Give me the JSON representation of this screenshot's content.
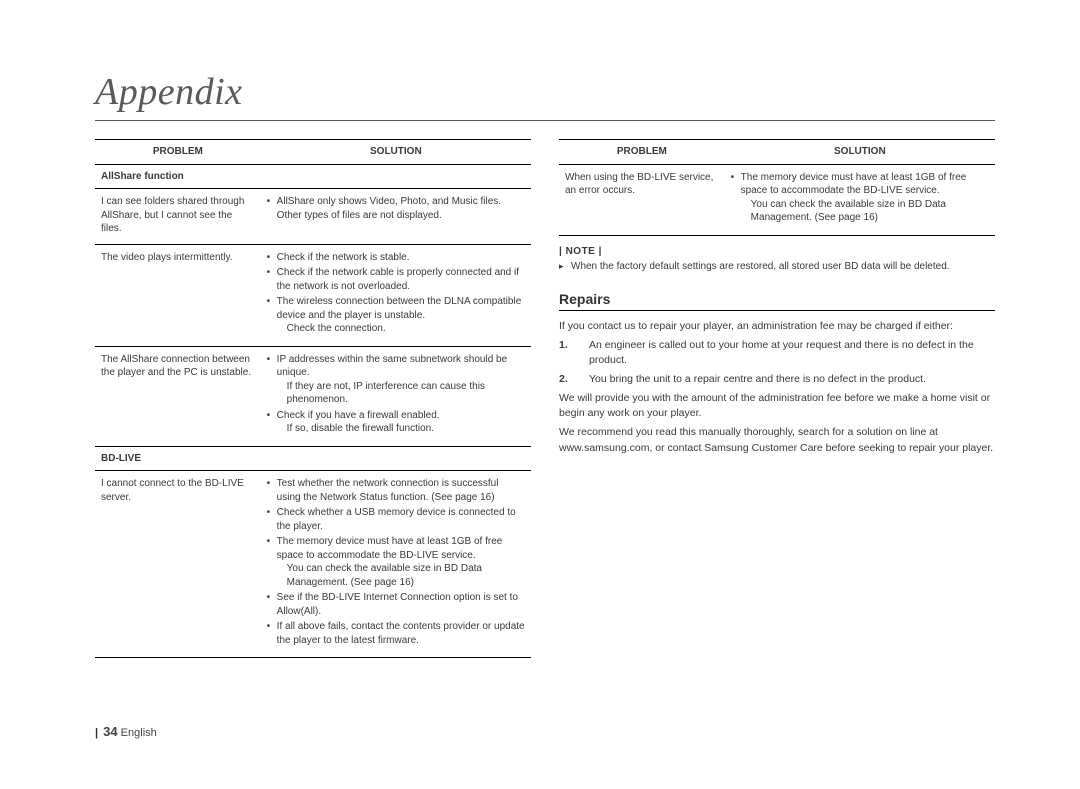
{
  "page": {
    "title": "Appendix",
    "number": "34",
    "language": "English"
  },
  "left_table": {
    "headers": {
      "problem": "PROBLEM",
      "solution": "SOLUTION"
    },
    "subhead1": "AllShare function",
    "rows1": [
      {
        "problem": "I can see folders shared through AllShare, but I cannot see the files.",
        "solutions": [
          {
            "text": "AllShare only shows Video, Photo, and Music files. Other types of files are not displayed."
          }
        ]
      },
      {
        "problem": "The video plays intermittently.",
        "solutions": [
          {
            "text": "Check if the network is stable."
          },
          {
            "text": "Check if the network cable is properly connected and if the network is not overloaded."
          },
          {
            "text": "The wireless connection between the DLNA compatible device and the player is unstable.",
            "sub": "Check the connection."
          }
        ]
      },
      {
        "problem": "The AllShare connection between the player and the PC is unstable.",
        "solutions": [
          {
            "text": "IP addresses within the same subnetwork should be unique.",
            "sub": "If they are not, IP interference can cause this phenomenon."
          },
          {
            "text": "Check if you have a firewall enabled.",
            "sub": "If so, disable the firewall function."
          }
        ]
      }
    ],
    "subhead2": "BD-LIVE",
    "rows2": [
      {
        "problem": "I cannot connect to the BD-LIVE server.",
        "solutions": [
          {
            "text": "Test whether the network connection is successful using the Network Status function. (See page 16)"
          },
          {
            "text": "Check whether a USB memory device is connected to the player."
          },
          {
            "text": "The memory device must have at least 1GB of free space to accommodate the BD-LIVE service.",
            "sub": "You can check the available size in BD Data Management. (See page 16)"
          },
          {
            "text": "See if the BD-LIVE Internet Connection option is set to Allow(All)."
          },
          {
            "text": "If all above fails, contact the contents provider or update the player to the latest firmware."
          }
        ]
      }
    ]
  },
  "right_table": {
    "headers": {
      "problem": "PROBLEM",
      "solution": "SOLUTION"
    },
    "rows": [
      {
        "problem": "When using the BD-LIVE service, an error occurs.",
        "solutions": [
          {
            "text": "The memory device must have at least 1GB of free space to accommodate the BD-LIVE service.",
            "sub": "You can check the available size in BD Data Management. (See page 16)"
          }
        ]
      }
    ]
  },
  "note": {
    "label": "| NOTE |",
    "text": "When the factory default settings are restored, all stored user BD data will be deleted."
  },
  "repairs": {
    "heading": "Repairs",
    "intro": "If you contact us to repair your player, an administration fee may be charged if either:",
    "items": [
      "An engineer is called out to your home at your request and there is no defect in the product.",
      "You bring the unit to a repair centre and there is no defect in the product."
    ],
    "para1": "We will provide you with the amount of the administration fee before we make a home visit or begin any work on your player.",
    "para2": "We recommend you read this manually thoroughly, search for a solution on line at www.samsung.com, or contact Samsung Customer Care before seeking to repair your player."
  }
}
